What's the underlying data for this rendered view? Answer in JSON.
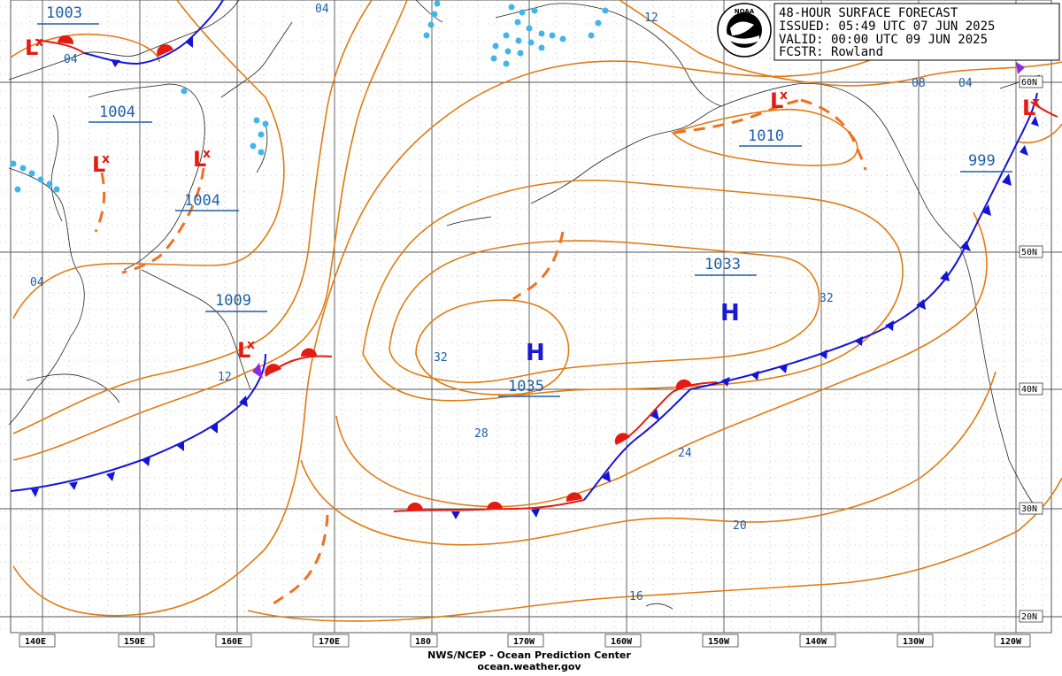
{
  "header": {
    "line1": "48-HOUR SURFACE FORECAST",
    "line2": "ISSUED: 05:49 UTC 07 JUN 2025",
    "line3": "VALID:  00:00 UTC 09 JUN 2025",
    "line4": "FCSTR: Rowland",
    "logo_text": "NOAA"
  },
  "footer": {
    "line1": "NWS/NCEP - Ocean Prediction Center",
    "line2": "ocean.weather.gov"
  },
  "longitude_labels": [
    "140E",
    "150E",
    "160E",
    "170E",
    "180",
    "170W",
    "160W",
    "150W",
    "140W",
    "130W",
    "120W"
  ],
  "latitude_labels": [
    "60N",
    "50N",
    "40N",
    "30N",
    "20N"
  ],
  "pressure_centers": [
    {
      "type": "H",
      "value": "1035"
    },
    {
      "type": "H",
      "value": "1033"
    },
    {
      "type": "L",
      "value": "1003"
    },
    {
      "type": "L",
      "value": "1004"
    },
    {
      "type": "L",
      "value": "1004"
    },
    {
      "type": "L",
      "value": "1009"
    },
    {
      "type": "L",
      "value": "1010"
    },
    {
      "type": "L",
      "value": "999"
    }
  ],
  "isobar_labels": [
    "04",
    "04",
    "04",
    "12",
    "12",
    "08",
    "04",
    "32",
    "32",
    "28",
    "24",
    "20",
    "16"
  ],
  "colors": {
    "isobar": "#e07b12",
    "cold_front": "#1414d8",
    "warm_front": "#e31b12",
    "trough": "#f07020",
    "low_symbol": "#e31b12",
    "high_symbol": "#1a1ad0",
    "label_text": "#1f5fa8",
    "ice": "#3fb6ea"
  }
}
